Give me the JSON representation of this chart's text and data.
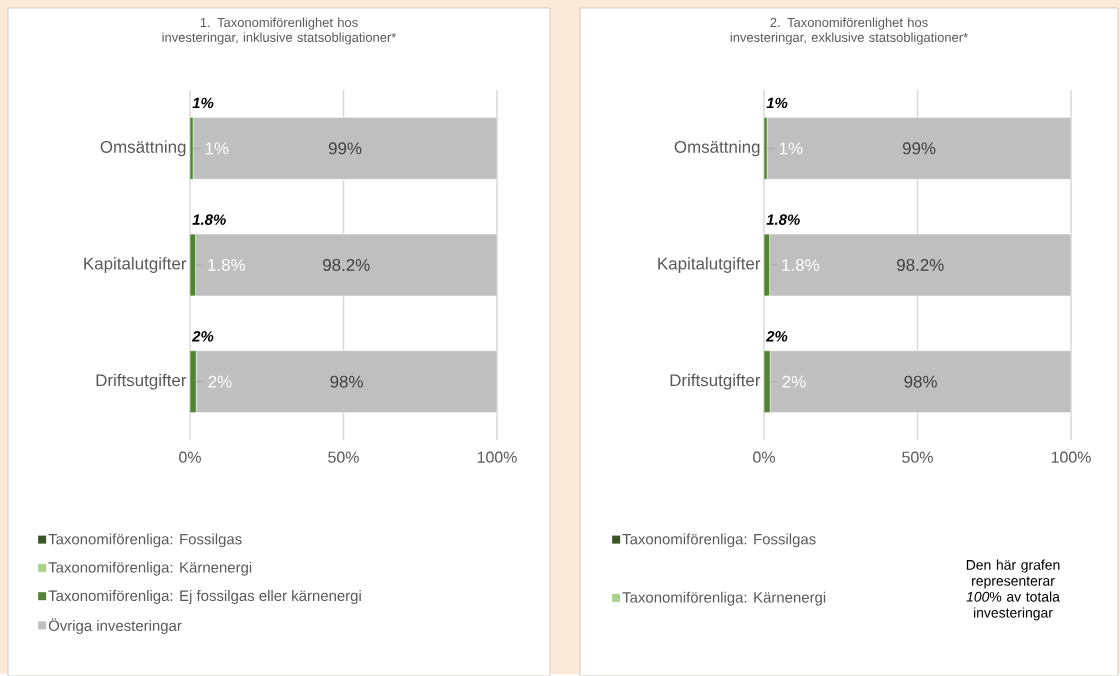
{
  "chart_data": [
    {
      "type": "bar",
      "orientation": "horizontal",
      "stacked": true,
      "title": "1. Taxonomiförenlighet hos investeringar, inklusive statsobligationer*",
      "categories": [
        "Omsättning",
        "Kapitalutgifter",
        "Driftsutgifter"
      ],
      "series": [
        {
          "name": "Taxonomiförenliga: Fossilgas",
          "color": "#375623",
          "values": [
            0,
            0,
            0
          ]
        },
        {
          "name": "Taxonomiförenliga: Kärnenergi",
          "color": "#a9d18e",
          "values": [
            0,
            0,
            0
          ]
        },
        {
          "name": "Taxonomiförenliga: Ej fossilgas eller kärnenergi",
          "color": "#548235",
          "values": [
            1,
            1.8,
            2
          ],
          "value_labels": [
            "1%",
            "1.8%",
            "2%"
          ]
        },
        {
          "name": "Övriga investeringar",
          "color": "#bfbfbf",
          "values": [
            99,
            98.2,
            98
          ],
          "value_labels": [
            "99%",
            "98.2%",
            "98%"
          ]
        }
      ],
      "xlim": [
        0,
        100
      ],
      "xticks": [
        {
          "value": 0,
          "label": "0%"
        },
        {
          "value": 50,
          "label": "50%"
        },
        {
          "value": 100,
          "label": "100%"
        }
      ],
      "grid": "x",
      "legend": "bottom",
      "annotations": [
        "1%",
        "1.8%",
        "2%"
      ]
    },
    {
      "type": "bar",
      "orientation": "horizontal",
      "stacked": true,
      "title": "2. Taxonomiförenlighet hos investeringar, exklusive statsobligationer*",
      "categories": [
        "Omsättning",
        "Kapitalutgifter",
        "Driftsutgifter"
      ],
      "series": [
        {
          "name": "Taxonomiförenliga: Fossilgas",
          "color": "#375623",
          "values": [
            0,
            0,
            0
          ]
        },
        {
          "name": "Taxonomiförenliga: Kärnenergi",
          "color": "#a9d18e",
          "values": [
            0,
            0,
            0
          ]
        },
        {
          "color": "#548235",
          "values": [
            1,
            1.8,
            2
          ],
          "value_labels": [
            "1%",
            "1.8%",
            "2%"
          ]
        },
        {
          "color": "#bfbfbf",
          "values": [
            99,
            98.2,
            98
          ],
          "value_labels": [
            "99%",
            "98.2%",
            "98%"
          ]
        }
      ],
      "xlim": [
        0,
        100
      ],
      "xticks": [
        {
          "value": 0,
          "label": "0%"
        },
        {
          "value": 50,
          "label": "50%"
        },
        {
          "value": 100,
          "label": "100%"
        }
      ],
      "grid": "x",
      "legend": "bottom",
      "annotations": [
        "1%",
        "1.8%",
        "2%",
        "Den här grafen representerar *100*% av totala investeringar"
      ]
    }
  ]
}
